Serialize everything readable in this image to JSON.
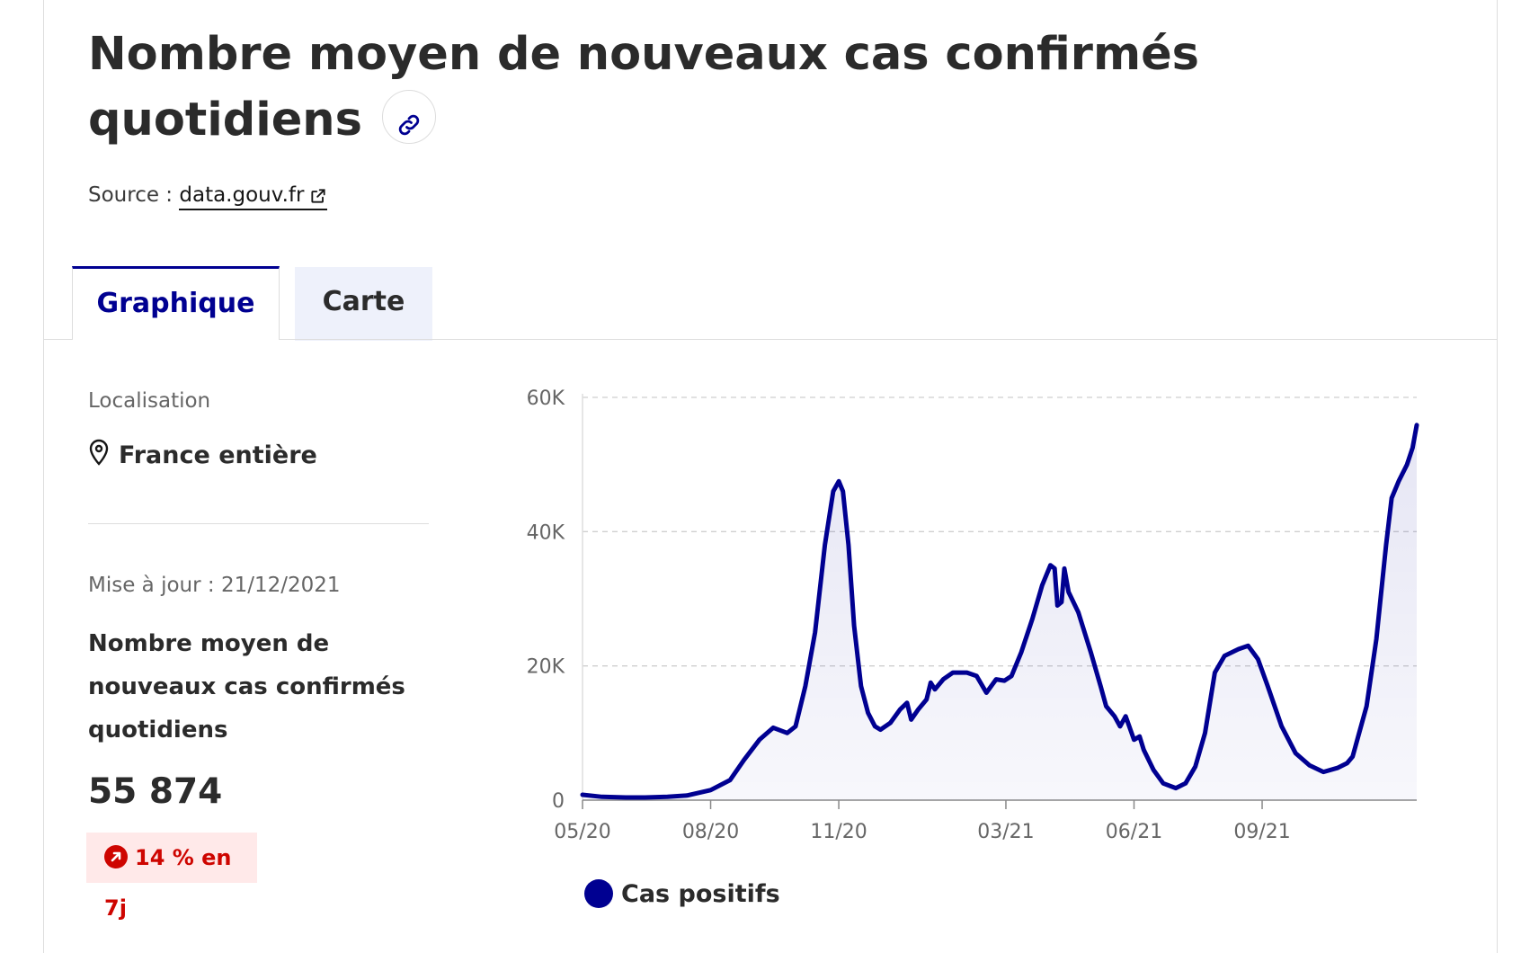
{
  "header": {
    "title": "Nombre moyen de nouveaux cas confirmés quotidiens",
    "source_label": "Source :",
    "source_link": "data.gouv.fr"
  },
  "tabs": [
    {
      "label": "Graphique",
      "active": true
    },
    {
      "label": "Carte",
      "active": false
    }
  ],
  "sidebar": {
    "location_label": "Localisation",
    "location_value": "France entière",
    "update_label": "Mise à jour : 21/12/2021",
    "metric_title": "Nombre moyen de nouveaux cas confirmés quotidiens",
    "metric_value": "55 874",
    "trend_text": "14 % en 7j"
  },
  "colors": {
    "accent": "#000091",
    "trend_bad": "#ce0500",
    "trend_bg": "#ffe9e9",
    "tab_inactive_bg": "#eef1fb"
  },
  "icons": {
    "link": "link-icon",
    "external": "external-link-icon",
    "location": "map-pin-icon",
    "trend": "arrow-up-right-circle-icon"
  },
  "chart_data": {
    "type": "area",
    "x_ticks": [
      "05/20",
      "08/20",
      "11/20",
      "03/21",
      "06/21",
      "09/21"
    ],
    "y_ticks": [
      "0",
      "20K",
      "40K",
      "60K"
    ],
    "ylim": [
      0,
      60000
    ],
    "grid": true,
    "legend_position": "bottom",
    "series": [
      {
        "name": "Cas positifs",
        "color": "#000091",
        "points": [
          [
            "2020-05-01",
            800
          ],
          [
            "2020-05-15",
            500
          ],
          [
            "2020-06-01",
            400
          ],
          [
            "2020-06-15",
            400
          ],
          [
            "2020-07-01",
            500
          ],
          [
            "2020-07-15",
            700
          ],
          [
            "2020-08-01",
            1500
          ],
          [
            "2020-08-15",
            3000
          ],
          [
            "2020-08-25",
            6000
          ],
          [
            "2020-09-05",
            9000
          ],
          [
            "2020-09-15",
            10800
          ],
          [
            "2020-09-25",
            10000
          ],
          [
            "2020-10-01",
            11000
          ],
          [
            "2020-10-08",
            17000
          ],
          [
            "2020-10-15",
            25000
          ],
          [
            "2020-10-22",
            38000
          ],
          [
            "2020-10-28",
            46000
          ],
          [
            "2020-11-01",
            47500
          ],
          [
            "2020-11-04",
            46000
          ],
          [
            "2020-11-08",
            38000
          ],
          [
            "2020-11-12",
            26000
          ],
          [
            "2020-11-17",
            17000
          ],
          [
            "2020-11-22",
            13000
          ],
          [
            "2020-11-27",
            11000
          ],
          [
            "2020-12-01",
            10500
          ],
          [
            "2020-12-08",
            11500
          ],
          [
            "2020-12-15",
            13500
          ],
          [
            "2020-12-20",
            14500
          ],
          [
            "2020-12-23",
            12000
          ],
          [
            "2020-12-28",
            13500
          ],
          [
            "2021-01-03",
            15000
          ],
          [
            "2021-01-06",
            17500
          ],
          [
            "2021-01-09",
            16500
          ],
          [
            "2021-01-15",
            18000
          ],
          [
            "2021-01-22",
            19000
          ],
          [
            "2021-02-01",
            19000
          ],
          [
            "2021-02-08",
            18500
          ],
          [
            "2021-02-15",
            16000
          ],
          [
            "2021-02-22",
            18000
          ],
          [
            "2021-02-28",
            17800
          ],
          [
            "2021-03-05",
            18500
          ],
          [
            "2021-03-12",
            22000
          ],
          [
            "2021-03-20",
            27000
          ],
          [
            "2021-03-27",
            32000
          ],
          [
            "2021-04-02",
            35000
          ],
          [
            "2021-04-05",
            34500
          ],
          [
            "2021-04-07",
            29000
          ],
          [
            "2021-04-10",
            29500
          ],
          [
            "2021-04-12",
            34500
          ],
          [
            "2021-04-15",
            31000
          ],
          [
            "2021-04-22",
            28000
          ],
          [
            "2021-05-01",
            22000
          ],
          [
            "2021-05-08",
            17000
          ],
          [
            "2021-05-12",
            14000
          ],
          [
            "2021-05-18",
            12500
          ],
          [
            "2021-05-22",
            11000
          ],
          [
            "2021-05-26",
            12500
          ],
          [
            "2021-06-01",
            9000
          ],
          [
            "2021-06-05",
            9500
          ],
          [
            "2021-06-08",
            7500
          ],
          [
            "2021-06-15",
            4500
          ],
          [
            "2021-06-22",
            2500
          ],
          [
            "2021-07-01",
            1800
          ],
          [
            "2021-07-08",
            2500
          ],
          [
            "2021-07-15",
            5000
          ],
          [
            "2021-07-22",
            10000
          ],
          [
            "2021-07-29",
            19000
          ],
          [
            "2021-08-05",
            21500
          ],
          [
            "2021-08-15",
            22500
          ],
          [
            "2021-08-22",
            23000
          ],
          [
            "2021-08-29",
            21000
          ],
          [
            "2021-09-05",
            17000
          ],
          [
            "2021-09-15",
            11000
          ],
          [
            "2021-09-25",
            7000
          ],
          [
            "2021-10-05",
            5200
          ],
          [
            "2021-10-15",
            4200
          ],
          [
            "2021-10-25",
            4800
          ],
          [
            "2021-11-01",
            5500
          ],
          [
            "2021-11-05",
            6500
          ],
          [
            "2021-11-09",
            9500
          ],
          [
            "2021-11-15",
            14000
          ],
          [
            "2021-11-22",
            24000
          ],
          [
            "2021-11-29",
            38000
          ],
          [
            "2021-12-03",
            45000
          ],
          [
            "2021-12-08",
            47500
          ],
          [
            "2021-12-14",
            50000
          ],
          [
            "2021-12-18",
            52500
          ],
          [
            "2021-12-21",
            55874
          ]
        ]
      }
    ]
  }
}
